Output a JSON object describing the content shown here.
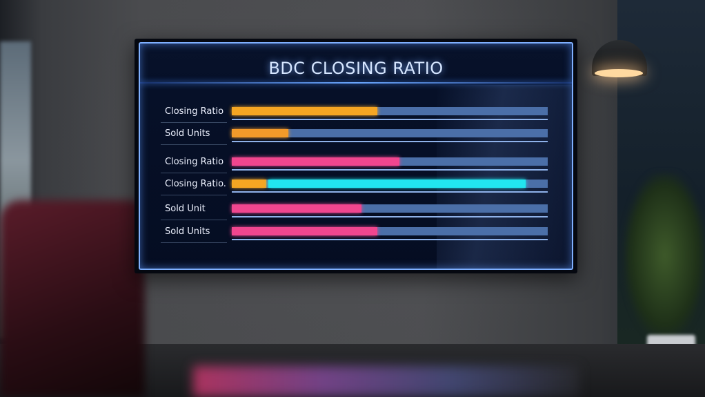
{
  "chart_data": {
    "type": "bar",
    "orientation": "horizontal",
    "title": "BDC CLOSING RATIO",
    "xlim": [
      0,
      100
    ],
    "grid": false,
    "rows": [
      {
        "label": "Closing Ratio",
        "segments": [
          {
            "start": 0,
            "end": 46,
            "color": "#f5a623"
          }
        ]
      },
      {
        "label": "Sold Units",
        "segments": [
          {
            "start": 0,
            "end": 18,
            "color": "#f39a2a"
          }
        ]
      },
      {
        "label": "Closing Ratio",
        "segments": [
          {
            "start": 0,
            "end": 53,
            "color": "#f0468f"
          }
        ]
      },
      {
        "label": "Closing Ratio.",
        "segments": [
          {
            "start": 0,
            "end": 11,
            "color": "#f5a623"
          },
          {
            "start": 11.5,
            "end": 93,
            "color": "#22e6f0"
          }
        ]
      },
      {
        "label": "Sold Unit",
        "segments": [
          {
            "start": 0,
            "end": 41,
            "color": "#f0468f"
          }
        ]
      },
      {
        "label": "Sold Units",
        "segments": [
          {
            "start": 0,
            "end": 46,
            "color": "#f0468f"
          }
        ]
      }
    ],
    "track_color": "#4b6fa8"
  }
}
